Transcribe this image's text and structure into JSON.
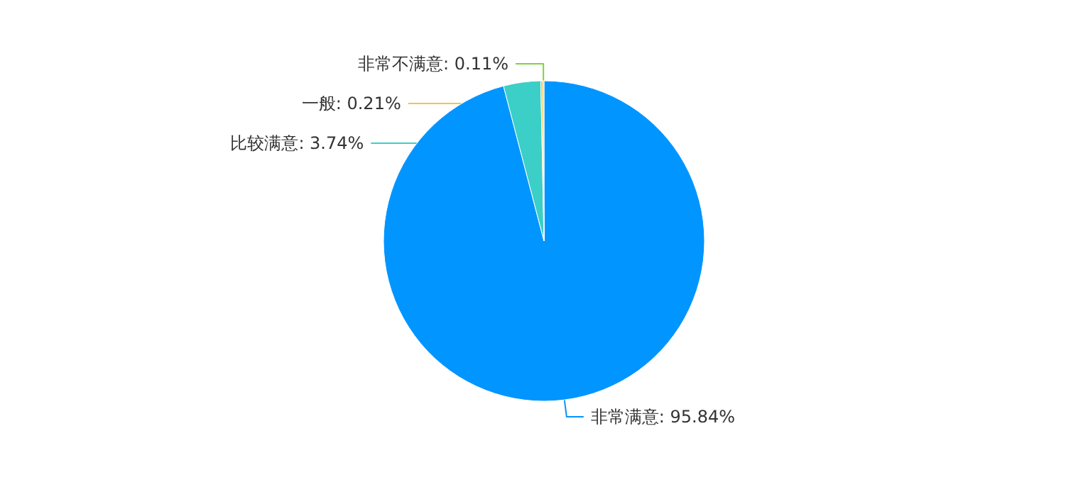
{
  "chart_data": {
    "type": "pie",
    "categories": [
      "非常满意",
      "比较满意",
      "一般",
      "非常不满意"
    ],
    "values": [
      95.84,
      3.74,
      0.21,
      0.11
    ],
    "value_labels": [
      "95.84%",
      "3.74%",
      "0.21%",
      "0.11%"
    ],
    "colors": [
      "#0095ff",
      "#3bcfc7",
      "#f8c43a",
      "#7ed33f"
    ],
    "legend": false
  }
}
